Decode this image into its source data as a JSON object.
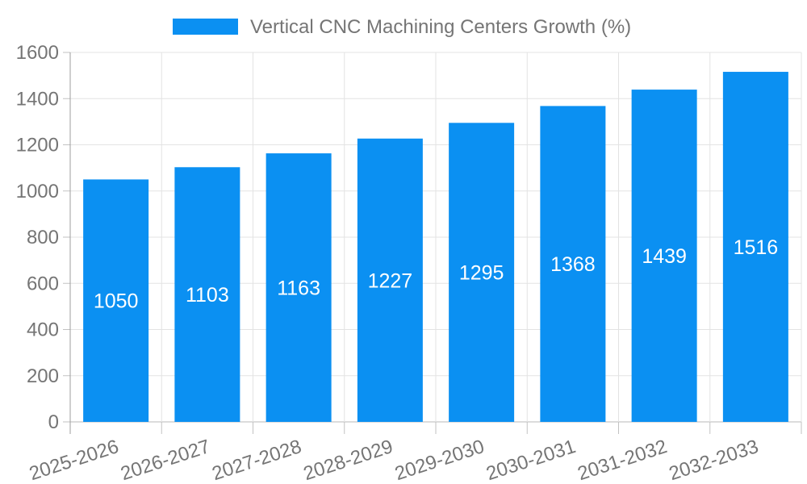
{
  "chart_data": {
    "type": "bar",
    "title": "Vertical CNC Machining Centers Growth (%)",
    "categories": [
      "2025-2026",
      "2026-2027",
      "2027-2028",
      "2028-2029",
      "2029-2030",
      "2030-2031",
      "2031-2032",
      "2032-2033"
    ],
    "values": [
      1050,
      1103,
      1163,
      1227,
      1295,
      1368,
      1439,
      1516
    ],
    "bar_value_labels": [
      "1050",
      "1103",
      "1163",
      "1227",
      "1295",
      "1368",
      "1439",
      "1516"
    ],
    "xlabel": "",
    "ylabel": "",
    "ylim": [
      0,
      1600
    ],
    "ytick_step": 200,
    "yticks": [
      0,
      200,
      400,
      600,
      800,
      1000,
      1200,
      1400,
      1600
    ],
    "grid": "horizontal and vertical gridlines on",
    "legend_position": "top-center",
    "x_label_rotation_deg": -18,
    "colors": {
      "bar": "#0b90f2",
      "bar_label_text": "#ffffff",
      "axis_text": "#757575",
      "gridline": "#e3e3e3",
      "zero_line": "#b8b8b8",
      "axis_line": "#9e9e9e",
      "tick": "#c2c2c2",
      "background": "#ffffff"
    }
  }
}
